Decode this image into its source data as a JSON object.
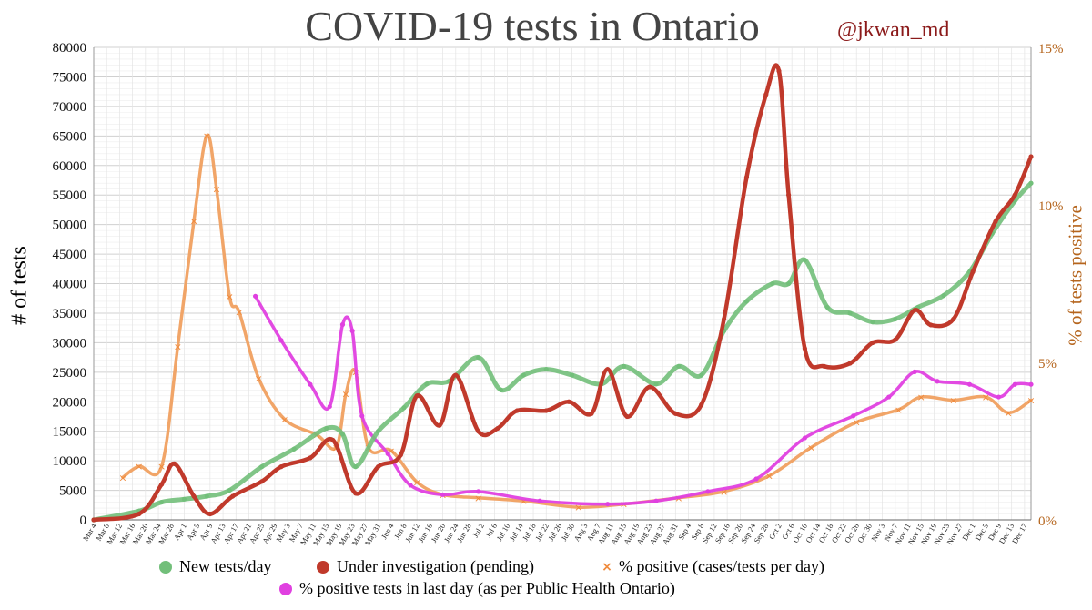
{
  "header": {
    "title": "COVID-19 tests in Ontario",
    "handle": "@jkwan_md"
  },
  "legend": {
    "new_tests": "New tests/day",
    "pending": "Under investigation (pending)",
    "pct_positive": "% positive (cases/tests per day)",
    "pho_positive": "% positive tests in last day (as per Public Health Ontario)"
  },
  "colors": {
    "new_tests": "#72bf7a",
    "pending": "#c0392b",
    "pct_positive": "#f0a060",
    "pho_positive": "#e040e0",
    "handle": "#8b1a1a",
    "right_axis": "#b5651d"
  },
  "chart_data": {
    "type": "line",
    "title": "COVID-19 tests in Ontario",
    "ylabel": "# of tests",
    "y2label": "% of tests positive",
    "ylim": [
      0,
      80000
    ],
    "y2lim": [
      0,
      15
    ],
    "y_ticks": [
      0,
      5000,
      10000,
      15000,
      20000,
      25000,
      30000,
      35000,
      40000,
      45000,
      50000,
      55000,
      60000,
      65000,
      70000,
      75000,
      80000
    ],
    "y2_ticks": [
      "0%",
      "5%",
      "10%",
      "15%"
    ],
    "grid": true,
    "legend_position": "bottom",
    "x_labels": [
      "Mar 4",
      "Mar 8",
      "Mar 12",
      "Mar 16",
      "Mar 20",
      "Mar 24",
      "Mar 28",
      "Apr 1",
      "Apr 5",
      "Apr 9",
      "Apr 13",
      "Apr 17",
      "Apr 21",
      "Apr 25",
      "Apr 29",
      "May 3",
      "May 7",
      "May 11",
      "May 15",
      "May 19",
      "May 23",
      "May 27",
      "May 31",
      "Jun 4",
      "Jun 8",
      "Jun 12",
      "Jun 16",
      "Jun 20",
      "Jun 24",
      "Jun 28",
      "Jul 2",
      "Jul 6",
      "Jul 10",
      "Jul 14",
      "Jul 18",
      "Jul 22",
      "Jul 26",
      "Jul 30",
      "Aug 3",
      "Aug 7",
      "Aug 11",
      "Aug 15",
      "Aug 19",
      "Aug 23",
      "Aug 27",
      "Aug 31",
      "Sep 4",
      "Sep 8",
      "Sep 12",
      "Sep 16",
      "Sep 20",
      "Sep 24",
      "Sep 28",
      "Oct 2",
      "Oct 6",
      "Oct 10",
      "Oct 14",
      "Oct 18",
      "Oct 22",
      "Oct 26",
      "Oct 30",
      "Nov 3",
      "Nov 7",
      "Nov 11",
      "Nov 15",
      "Nov 19",
      "Nov 23",
      "Nov 27",
      "Dec 1",
      "Dec 5",
      "Dec 9",
      "Dec 13",
      "Dec 17"
    ],
    "x_day_range": [
      "Mar 4",
      "Dec 19"
    ],
    "series": [
      {
        "name": "New tests/day",
        "axis": "left",
        "x": [
          "Mar 4",
          "Mar 18",
          "Mar 25",
          "Apr 1",
          "Apr 8",
          "Apr 15",
          "Apr 25",
          "May 5",
          "May 15",
          "May 20",
          "May 24",
          "May 31",
          "Jun 8",
          "Jun 15",
          "Jun 22",
          "Jul 1",
          "Jul 8",
          "Jul 15",
          "Jul 22",
          "Jul 30",
          "Aug 8",
          "Aug 15",
          "Aug 25",
          "Sep 1",
          "Sep 8",
          "Sep 15",
          "Sep 22",
          "Sep 30",
          "Oct 5",
          "Oct 10",
          "Oct 17",
          "Oct 24",
          "Oct 31",
          "Nov 7",
          "Nov 14",
          "Nov 22",
          "Nov 30",
          "Dec 7",
          "Dec 14",
          "Dec 19"
        ],
        "values": [
          0,
          1500,
          3000,
          3500,
          4000,
          5000,
          9000,
          12000,
          15500,
          14500,
          9000,
          15000,
          19000,
          23000,
          23500,
          27500,
          22000,
          24500,
          25500,
          24500,
          23000,
          26000,
          23000,
          26000,
          24500,
          32000,
          37000,
          40000,
          40000,
          44000,
          36000,
          35000,
          33500,
          34000,
          36000,
          38000,
          42000,
          48500,
          54000,
          57000
        ]
      },
      {
        "name": "Under investigation (pending)",
        "axis": "left",
        "x": [
          "Mar 4",
          "Mar 18",
          "Mar 25",
          "Mar 29",
          "Apr 4",
          "Apr 9",
          "Apr 16",
          "Apr 25",
          "May 1",
          "May 10",
          "May 17",
          "May 24",
          "May 31",
          "Jun 7",
          "Jun 12",
          "Jun 19",
          "Jun 24",
          "Jul 1",
          "Jul 7",
          "Jul 13",
          "Jul 22",
          "Jul 29",
          "Aug 5",
          "Aug 10",
          "Aug 16",
          "Aug 23",
          "Aug 31",
          "Sep 8",
          "Sep 15",
          "Sep 22",
          "Sep 28",
          "Oct 2",
          "Oct 5",
          "Oct 10",
          "Oct 16",
          "Oct 24",
          "Oct 31",
          "Nov 7",
          "Nov 13",
          "Nov 18",
          "Nov 25",
          "Dec 1",
          "Dec 8",
          "Dec 14",
          "Dec 19"
        ],
        "values": [
          0,
          1000,
          6000,
          9500,
          4000,
          1000,
          4000,
          6500,
          9000,
          10500,
          13500,
          4500,
          9000,
          11000,
          21000,
          16000,
          24500,
          15000,
          15500,
          18500,
          18500,
          20000,
          18000,
          25500,
          17500,
          22500,
          18000,
          19500,
          34000,
          58000,
          72000,
          76000,
          55000,
          29000,
          26000,
          26500,
          30000,
          30500,
          35500,
          33000,
          34000,
          42000,
          50500,
          55000,
          61500
        ]
      },
      {
        "name": "% positive (cases/tests per day)",
        "axis": "right",
        "x": [
          "Mar 13",
          "Mar 18",
          "Mar 25",
          "Mar 30",
          "Apr 4",
          "Apr 8",
          "Apr 11",
          "Apr 15",
          "Apr 18",
          "Apr 24",
          "May 2",
          "May 12",
          "May 18",
          "May 21",
          "May 24",
          "May 28",
          "Jun 4",
          "Jun 12",
          "Jun 20",
          "Jul 1",
          "Jul 15",
          "Aug 1",
          "Aug 15",
          "Sep 1",
          "Sep 15",
          "Sep 29",
          "Oct 12",
          "Oct 26",
          "Nov 8",
          "Nov 15",
          "Nov 25",
          "Dec 5",
          "Dec 12",
          "Dec 19"
        ],
        "values": [
          1.35,
          1.7,
          1.7,
          5.5,
          9.5,
          12.2,
          10.5,
          7.1,
          6.6,
          4.5,
          3.2,
          2.7,
          2.3,
          4.0,
          4.7,
          2.3,
          2.2,
          1.2,
          0.8,
          0.7,
          0.6,
          0.4,
          0.5,
          0.7,
          0.9,
          1.4,
          2.3,
          3.1,
          3.5,
          3.9,
          3.8,
          3.9,
          3.4,
          3.8
        ]
      },
      {
        "name": "% positive tests in last day (as per Public Health Ontario)",
        "axis": "right",
        "x": [
          "Apr 23",
          "May 1",
          "May 10",
          "May 16",
          "May 20",
          "May 23",
          "May 26",
          "Jun 3",
          "Jun 10",
          "Jun 20",
          "Jul 1",
          "Jul 20",
          "Aug 10",
          "Aug 25",
          "Sep 10",
          "Sep 25",
          "Oct 10",
          "Oct 25",
          "Nov 5",
          "Nov 13",
          "Nov 20",
          "Nov 30",
          "Dec 9",
          "Dec 14",
          "Dec 19"
        ],
        "values": [
          7.1,
          5.7,
          4.3,
          3.6,
          6.2,
          6.0,
          3.3,
          2.1,
          1.1,
          0.8,
          0.9,
          0.6,
          0.5,
          0.6,
          0.9,
          1.3,
          2.6,
          3.3,
          3.9,
          4.7,
          4.4,
          4.3,
          3.9,
          4.3,
          4.3
        ]
      }
    ]
  }
}
